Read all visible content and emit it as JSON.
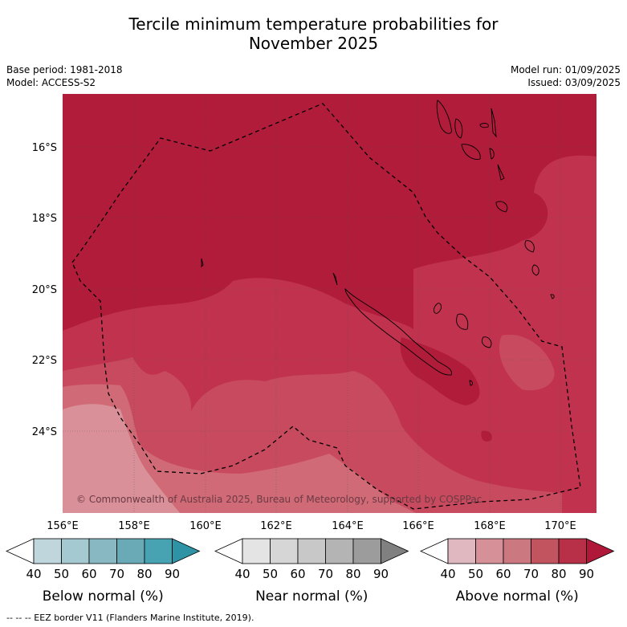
{
  "title_line1": "Tercile minimum temperature probabilities for",
  "title_line2": "November 2025",
  "base_period": "Base period: 1981-2018",
  "model": "Model: ACCESS-S2",
  "model_run": "Model run: 01/09/2025",
  "issued": "Issued: 03/09/2025",
  "copyright": "© Commonwealth of Australia 2025, Bureau of Meteorology, supported by COSPPac",
  "lat_ticks": [
    "16°S",
    "18°S",
    "20°S",
    "22°S",
    "24°S"
  ],
  "lon_ticks": [
    "156°E",
    "158°E",
    "160°E",
    "162°E",
    "164°E",
    "166°E",
    "168°E",
    "170°E"
  ],
  "colorbars": [
    {
      "title": "Below normal (%)",
      "ticks": [
        "40",
        "50",
        "60",
        "70",
        "80",
        "90"
      ],
      "colors": [
        "#ffffff",
        "#bfd6dd",
        "#a4c9d0",
        "#88b9c3",
        "#6aaab6",
        "#47a2b2",
        "#2e93a5"
      ]
    },
    {
      "title": "Near normal (%)",
      "ticks": [
        "40",
        "50",
        "60",
        "70",
        "80",
        "90"
      ],
      "colors": [
        "#ffffff",
        "#e4e4e4",
        "#d6d6d6",
        "#c8c8c8",
        "#b4b4b4",
        "#9c9c9c",
        "#808080"
      ]
    },
    {
      "title": "Above normal (%)",
      "ticks": [
        "40",
        "50",
        "60",
        "70",
        "80",
        "90"
      ],
      "colors": [
        "#ffffff",
        "#e0b8c0",
        "#d69098",
        "#cc7880",
        "#c25460",
        "#b82f48",
        "#b0183a"
      ]
    }
  ],
  "legend_footer": "--  --  -- EEZ border V11 (Flanders Marine Institute, 2019)."
}
